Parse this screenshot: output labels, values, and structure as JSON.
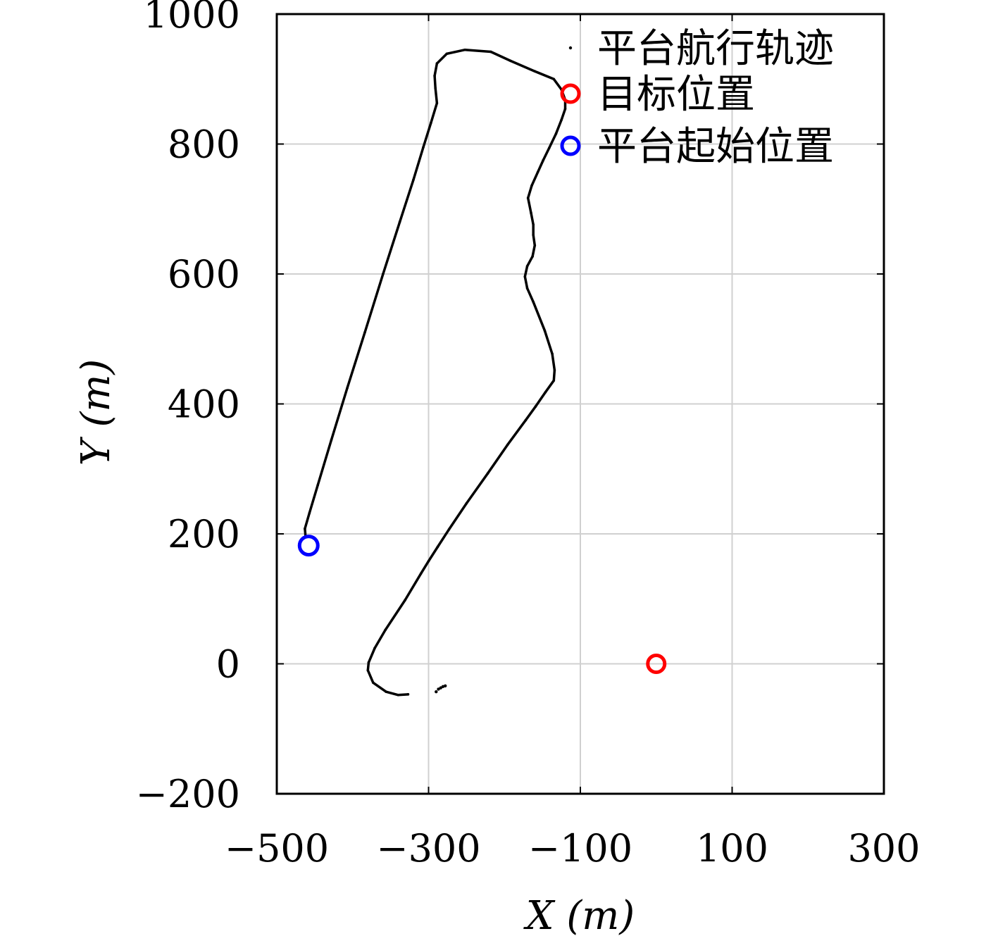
{
  "chart_data": {
    "type": "scatter",
    "xlabel": "X (m)",
    "ylabel": "Y (m)",
    "xlim": [
      -500,
      300
    ],
    "ylim": [
      -200,
      1000
    ],
    "grid": true,
    "legend_position": "top-right",
    "x_ticks": [
      -500,
      -300,
      -100,
      100,
      300
    ],
    "x_tick_labels": [
      "−500",
      "−300",
      "−100",
      "100",
      "300"
    ],
    "y_ticks": [
      -200,
      0,
      200,
      400,
      600,
      800,
      1000
    ],
    "y_tick_labels": [
      "−200",
      "0",
      "200",
      "400",
      "600",
      "800",
      "1000"
    ],
    "series": [
      {
        "name": "平台航行轨迹",
        "marker": "dot",
        "color": "#000000",
        "points": [
          [
            -327,
            -47
          ],
          [
            -340,
            -48
          ],
          [
            -356,
            -43
          ],
          [
            -373,
            -29
          ],
          [
            -380,
            -10
          ],
          [
            -379,
            2
          ],
          [
            -371,
            24
          ],
          [
            -357,
            52
          ],
          [
            -331,
            98
          ],
          [
            -310,
            139
          ],
          [
            -300,
            158
          ],
          [
            -288,
            180
          ],
          [
            -273,
            207
          ],
          [
            -250,
            247
          ],
          [
            -222,
            293
          ],
          [
            -196,
            337
          ],
          [
            -172,
            375
          ],
          [
            -159,
            396
          ],
          [
            -146,
            418
          ],
          [
            -135,
            436
          ],
          [
            -134,
            452
          ],
          [
            -137,
            477
          ],
          [
            -147,
            513
          ],
          [
            -162,
            557
          ],
          [
            -170,
            578
          ],
          [
            -173,
            596
          ],
          [
            -170,
            612
          ],
          [
            -163,
            627
          ],
          [
            -160,
            644
          ],
          [
            -162,
            660
          ],
          [
            -162,
            676
          ],
          [
            -165,
            694
          ],
          [
            -169,
            717
          ],
          [
            -164,
            736
          ],
          [
            -156,
            757
          ],
          [
            -149,
            775
          ],
          [
            -141,
            794
          ],
          [
            -132,
            816
          ],
          [
            -125,
            837
          ],
          [
            -120,
            854
          ],
          [
            -120,
            868
          ],
          [
            -125,
            884
          ],
          [
            -135,
            900
          ],
          [
            -160,
            912
          ],
          [
            -192,
            928
          ],
          [
            -218,
            942
          ],
          [
            -252,
            945
          ],
          [
            -276,
            939
          ],
          [
            -289,
            924
          ],
          [
            -292,
            905
          ],
          [
            -291,
            886
          ],
          [
            -289,
            863
          ],
          [
            -297,
            832
          ],
          [
            -307,
            795
          ],
          [
            -320,
            745
          ],
          [
            -338,
            680
          ],
          [
            -360,
            600
          ],
          [
            -384,
            510
          ],
          [
            -407,
            425
          ],
          [
            -428,
            345
          ],
          [
            -446,
            275
          ],
          [
            -457,
            232
          ],
          [
            -463,
            208
          ],
          [
            -462,
            195
          ]
        ],
        "stray_points": [
          [
            -284,
            -37
          ],
          [
            -287,
            -39
          ],
          [
            -281,
            -35
          ],
          [
            -278,
            -34
          ],
          [
            -290,
            -43
          ]
        ]
      },
      {
        "name": "目标位置",
        "marker": "circle",
        "color": "#ff0000",
        "points": [
          [
            0,
            0
          ]
        ]
      },
      {
        "name": "平台起始位置",
        "marker": "circle",
        "color": "#0000ff",
        "points": [
          [
            -458,
            182
          ]
        ]
      }
    ]
  }
}
